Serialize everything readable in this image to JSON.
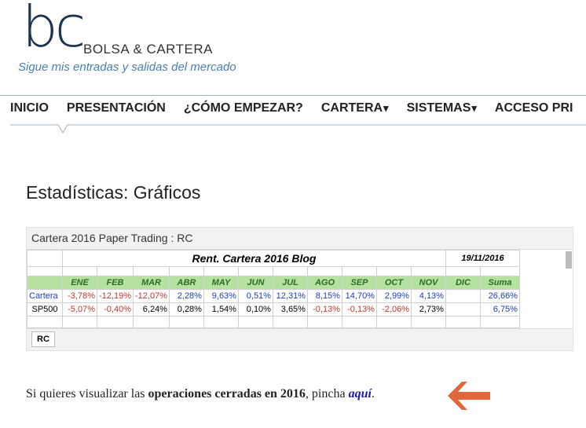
{
  "header": {
    "logo": "bc",
    "site_name": "BOLSA & CARTERA",
    "tagline": "Sigue mis entradas y salidas del mercado"
  },
  "nav": [
    {
      "label": "INICIO",
      "dropdown": false
    },
    {
      "label": "PRESENTACIÓN",
      "dropdown": false
    },
    {
      "label": "¿CÓMO EMPEZAR?",
      "dropdown": false
    },
    {
      "label": "CARTERA",
      "dropdown": true
    },
    {
      "label": "SISTEMAS",
      "dropdown": true
    },
    {
      "label": "ACCESO PRI",
      "dropdown": false
    }
  ],
  "page_title": "Estadísticas: Gráficos",
  "embed": {
    "title": "Cartera 2016 Paper Trading : RC",
    "sheet_title": "Rent. Cartera 2016 Blog",
    "date": "19/11/2016",
    "columns": [
      "ENE",
      "FEB",
      "MAR",
      "ABR",
      "MAY",
      "JUN",
      "JUL",
      "AGO",
      "SEP",
      "OCT",
      "NOV",
      "DIC",
      "Suma"
    ],
    "rows": [
      {
        "label": "Cartera",
        "color": "#1a3fc0",
        "cells": [
          "-3,78%",
          "-12,19%",
          "-12,07%",
          "2,28%",
          "9,63%",
          "0,51%",
          "12,31%",
          "8,15%",
          "14,70%",
          "2,99%",
          "4,13%",
          "",
          "26,66%"
        ]
      },
      {
        "label": "SP500",
        "color": "#000000",
        "cells": [
          "-5,07%",
          "-0,40%",
          "6,24%",
          "0,28%",
          "1,54%",
          "0,10%",
          "3,65%",
          "-0,13%",
          "-0,13%",
          "-2,06%",
          "2,73%",
          "",
          "6,75%"
        ]
      }
    ],
    "tab": "RC"
  },
  "footer": {
    "intro": "Si quieres visualizar las ",
    "highlight": "operaciones cerradas en 2016",
    "middle": ", pincha ",
    "link": "aquí",
    "end": "."
  }
}
